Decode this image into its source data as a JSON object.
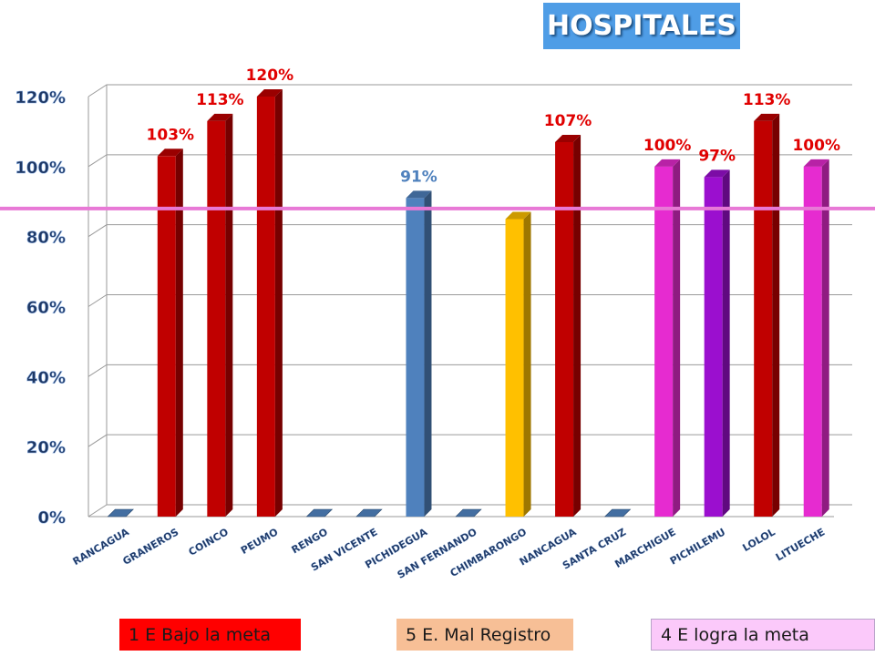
{
  "title": "HOSPITALES",
  "legend_boxes": [
    {
      "label": "1 E Bajo la meta",
      "color": "#ff0000"
    },
    {
      "label": "5 E. Mal Registro",
      "color": "#f7bf96"
    },
    {
      "label": "4 E logra la meta",
      "color": "#fbc9fa"
    }
  ],
  "chart_data": {
    "type": "bar",
    "title": "HOSPITALES",
    "categories": [
      "RANCAGUA",
      "GRANEROS",
      "COINCO",
      "PEUMO",
      "RENGO",
      "SAN VICENTE",
      "PICHIDEGUA",
      "SAN FERNANDO",
      "CHIMBARONGO",
      "NANCAGUA",
      "SANTA CRUZ",
      "MARCHIGUE",
      "PICHILEMU",
      "LOLOL",
      "LITUECHE"
    ],
    "values": [
      0,
      103,
      113,
      120,
      0,
      0,
      91,
      0,
      85,
      107,
      0,
      100,
      97,
      113,
      100
    ],
    "data_labels": [
      "",
      "103%",
      "113%",
      "120%",
      "",
      "",
      "91%",
      "",
      "",
      "107%",
      "",
      "100%",
      "97%",
      "113%",
      "100%"
    ],
    "bar_colors": [
      "#4f81bd",
      "#c00000",
      "#c00000",
      "#c00000",
      "#4f81bd",
      "#4f81bd",
      "#4f81bd",
      "#4f81bd",
      "#ffc000",
      "#c00000",
      "#4f81bd",
      "#e62bd0",
      "#9b0fcf",
      "#c00000",
      "#e62bd0"
    ],
    "label_colors": [
      "",
      "#e00000",
      "#e00000",
      "#e00000",
      "",
      "",
      "#4f81bd",
      "",
      "",
      "#e00000",
      "",
      "#e00000",
      "#e00000",
      "#e00000",
      "#e00000"
    ],
    "y_ticks": [
      "0%",
      "20%",
      "40%",
      "60%",
      "80%",
      "100%",
      "120%"
    ],
    "ylim": [
      0,
      120
    ],
    "target_line": 88,
    "target_color": "#e879d6",
    "grid": true
  }
}
